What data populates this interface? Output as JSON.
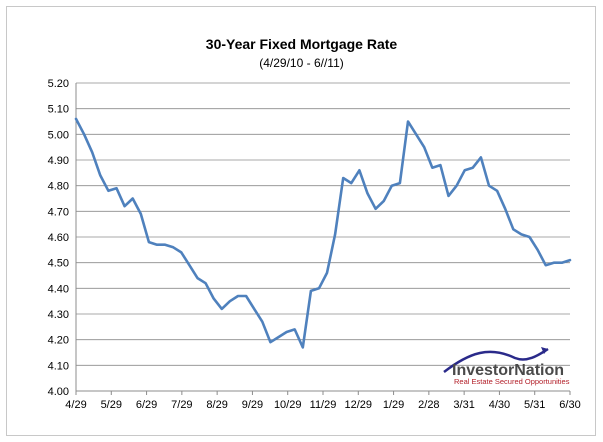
{
  "chart_data": {
    "type": "line",
    "title": "30-Year Fixed Mortgage Rate",
    "subtitle": "(4/29/10 - 6//11)",
    "xlabel": "",
    "ylabel": "",
    "ylim": [
      4.0,
      5.2
    ],
    "y_ticks": [
      "4.00",
      "4.10",
      "4.20",
      "4.30",
      "4.40",
      "4.50",
      "4.60",
      "4.70",
      "4.80",
      "4.90",
      "5.00",
      "5.10",
      "5.20"
    ],
    "x_tick_labels": [
      "4/29",
      "5/29",
      "6/29",
      "7/29",
      "8/29",
      "9/29",
      "10/29",
      "11/29",
      "12/29",
      "1/29",
      "2/28",
      "3/31",
      "4/30",
      "5/31",
      "6/30"
    ],
    "grid": true,
    "legend": "none",
    "line_color": "#4f81bd",
    "series": [
      {
        "values": [
          5.06,
          5.0,
          4.93,
          4.84,
          4.78,
          4.79,
          4.72,
          4.75,
          4.69,
          4.58,
          4.57,
          4.57,
          4.56,
          4.54,
          4.49,
          4.44,
          4.42,
          4.36,
          4.32,
          4.35,
          4.37,
          4.37,
          4.32,
          4.27,
          4.19,
          4.21,
          4.23,
          4.24,
          4.17,
          4.39,
          4.4,
          4.46,
          4.61,
          4.83,
          4.81,
          4.86,
          4.77,
          4.71,
          4.74,
          4.8,
          4.81,
          5.05,
          5.0,
          4.95,
          4.87,
          4.88,
          4.76,
          4.8,
          4.86,
          4.87,
          4.91,
          4.8,
          4.78,
          4.71,
          4.63,
          4.61,
          4.6,
          4.55,
          4.49,
          4.5,
          4.5,
          4.51
        ]
      }
    ]
  },
  "logo": {
    "name_part1": "Investor",
    "name_part2": "Nation",
    "tagline": "Real Estate Secured Opportunities"
  }
}
